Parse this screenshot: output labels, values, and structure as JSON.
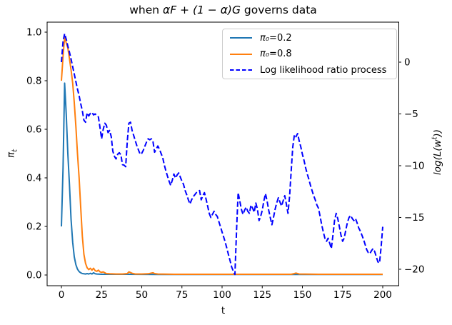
{
  "figure": {
    "title": {
      "prefix": "when ",
      "math": "αF + (1 − α)G",
      "suffix": " governs data"
    },
    "xlabel": "t",
    "ylabel_left": {
      "main": "π",
      "sub": "t"
    },
    "ylabel_right": {
      "pre": "log(L(w",
      "sup": "t",
      "post": "))"
    }
  },
  "chart_data": {
    "type": "line",
    "title": "when αF + (1 − α)G governs data",
    "xlabel": "t",
    "ylabel_left": "π_t",
    "ylabel_right": "log(L(w^t))",
    "grid": false,
    "xlim": [
      -8.9,
      210.0
    ],
    "ylim_left": [
      -0.0441,
      1.0412
    ],
    "ylim_right": [
      -21.59,
      3.862
    ],
    "x_ticks": [
      "0",
      "25",
      "50",
      "75",
      "100",
      "125",
      "150",
      "175",
      "200"
    ],
    "x_tick_values": [
      0,
      25,
      50,
      75,
      100,
      125,
      150,
      175,
      200
    ],
    "y_ticks_left": [
      "0.0",
      "0.2",
      "0.4",
      "0.6",
      "0.8",
      "1.0"
    ],
    "y_tick_left_values": [
      0,
      0.2,
      0.4,
      0.6,
      0.8,
      1.0
    ],
    "y_ticks_right": [
      "0",
      "−5",
      "−10",
      "−15",
      "−20"
    ],
    "y_tick_right_values": [
      0,
      -5,
      -10,
      -15,
      -20
    ],
    "legend": {
      "position": "upper right",
      "entries": [
        {
          "swatch": "solid",
          "color": "#1f77b4",
          "math": "π₀",
          "rest": "=0.2"
        },
        {
          "swatch": "solid",
          "color": "#ff7f0e",
          "math": "π₀",
          "rest": "=0.8"
        },
        {
          "swatch": "dashed",
          "color": "#0000ff",
          "math": "",
          "rest": "Log likelihood ratio process"
        }
      ]
    },
    "series": [
      {
        "id": "pi0-02",
        "name": "π₀=0.2",
        "axis": "left",
        "color": "#1f77b4",
        "style": "solid",
        "points": [
          [
            0,
            0.2
          ],
          [
            1,
            0.44
          ],
          [
            2,
            0.79
          ],
          [
            3,
            0.66
          ],
          [
            4,
            0.5
          ],
          [
            5,
            0.37
          ],
          [
            6,
            0.23
          ],
          [
            7,
            0.135
          ],
          [
            8,
            0.075
          ],
          [
            9,
            0.042
          ],
          [
            10,
            0.024
          ],
          [
            11,
            0.014
          ],
          [
            12,
            0.009
          ],
          [
            13,
            0.006
          ],
          [
            14,
            0.005
          ],
          [
            15,
            0.004
          ],
          [
            16,
            0.006
          ],
          [
            17,
            0.004
          ],
          [
            18,
            0.007
          ],
          [
            19,
            0.004
          ],
          [
            20,
            0.009
          ],
          [
            21,
            0.005
          ],
          [
            22,
            0.004
          ],
          [
            25,
            0.003
          ],
          [
            40,
            0.003
          ],
          [
            60,
            0.002
          ],
          [
            100,
            0.002
          ],
          [
            140,
            0.002
          ],
          [
            200,
            0.002
          ]
        ]
      },
      {
        "id": "pi0-08",
        "name": "π₀=0.8",
        "axis": "left",
        "color": "#ff7f0e",
        "style": "solid",
        "points": [
          [
            0,
            0.8
          ],
          [
            1,
            0.9
          ],
          [
            2,
            0.98
          ],
          [
            3,
            0.955
          ],
          [
            4,
            0.935
          ],
          [
            5,
            0.89
          ],
          [
            6,
            0.845
          ],
          [
            7,
            0.79
          ],
          [
            8,
            0.71
          ],
          [
            9,
            0.61
          ],
          [
            10,
            0.5
          ],
          [
            11,
            0.4
          ],
          [
            12,
            0.28
          ],
          [
            13,
            0.16
          ],
          [
            14,
            0.085
          ],
          [
            15,
            0.048
          ],
          [
            16,
            0.03
          ],
          [
            17,
            0.022
          ],
          [
            18,
            0.028
          ],
          [
            19,
            0.02
          ],
          [
            20,
            0.028
          ],
          [
            21,
            0.018
          ],
          [
            22,
            0.015
          ],
          [
            23,
            0.02
          ],
          [
            24,
            0.013
          ],
          [
            25,
            0.011
          ],
          [
            26,
            0.013
          ],
          [
            27,
            0.009
          ],
          [
            28,
            0.006
          ],
          [
            30,
            0.005
          ],
          [
            34,
            0.004
          ],
          [
            38,
            0.004
          ],
          [
            41,
            0.006
          ],
          [
            42,
            0.013
          ],
          [
            43,
            0.01
          ],
          [
            44,
            0.007
          ],
          [
            46,
            0.004
          ],
          [
            50,
            0.004
          ],
          [
            54,
            0.005
          ],
          [
            56,
            0.008
          ],
          [
            57,
            0.009
          ],
          [
            58,
            0.006
          ],
          [
            60,
            0.004
          ],
          [
            70,
            0.003
          ],
          [
            90,
            0.003
          ],
          [
            120,
            0.003
          ],
          [
            143,
            0.003
          ],
          [
            145,
            0.006
          ],
          [
            146,
            0.008
          ],
          [
            148,
            0.004
          ],
          [
            160,
            0.003
          ],
          [
            180,
            0.003
          ],
          [
            200,
            0.003
          ]
        ]
      },
      {
        "id": "llr",
        "name": "Log likelihood ratio process",
        "axis": "right",
        "color": "#0000ff",
        "style": "dashed",
        "points": [
          [
            0,
            0
          ],
          [
            1,
            2.0
          ],
          [
            2,
            2.75
          ],
          [
            3,
            2.2
          ],
          [
            4,
            1.55
          ],
          [
            5,
            0.95
          ],
          [
            6,
            0.3
          ],
          [
            7,
            -0.45
          ],
          [
            8,
            -1.15
          ],
          [
            9,
            -1.9
          ],
          [
            10,
            -2.6
          ],
          [
            11,
            -3.25
          ],
          [
            12,
            -4.0
          ],
          [
            13,
            -4.7
          ],
          [
            14,
            -5.6
          ],
          [
            15,
            -5.8
          ],
          [
            16,
            -4.9
          ],
          [
            17,
            -5.2
          ],
          [
            18,
            -4.95
          ],
          [
            19,
            -4.85
          ],
          [
            20,
            -5.1
          ],
          [
            21,
            -5.0
          ],
          [
            22,
            -5.15
          ],
          [
            23,
            -5.3
          ],
          [
            24,
            -6.3
          ],
          [
            25,
            -7.4
          ],
          [
            26,
            -6.5
          ],
          [
            27,
            -5.9
          ],
          [
            28,
            -6.1
          ],
          [
            29,
            -6.8
          ],
          [
            30,
            -6.6
          ],
          [
            31,
            -7.2
          ],
          [
            32,
            -8.6
          ],
          [
            33,
            -9.1
          ],
          [
            34,
            -9.35
          ],
          [
            35,
            -8.9
          ],
          [
            36,
            -8.75
          ],
          [
            37,
            -8.95
          ],
          [
            38,
            -9.9
          ],
          [
            39,
            -9.95
          ],
          [
            40,
            -10.1
          ],
          [
            41,
            -7.6
          ],
          [
            42,
            -5.9
          ],
          [
            43,
            -5.8
          ],
          [
            44,
            -6.6
          ],
          [
            45,
            -7.1
          ],
          [
            46,
            -7.6
          ],
          [
            47,
            -8.1
          ],
          [
            48,
            -8.5
          ],
          [
            49,
            -8.9
          ],
          [
            50,
            -8.8
          ],
          [
            51,
            -8.5
          ],
          [
            52,
            -8.1
          ],
          [
            53,
            -7.7
          ],
          [
            54,
            -7.4
          ],
          [
            55,
            -7.5
          ],
          [
            56,
            -7.4
          ],
          [
            57,
            -7.7
          ],
          [
            58,
            -8.7
          ],
          [
            59,
            -8.4
          ],
          [
            60,
            -8.1
          ],
          [
            61,
            -8.4
          ],
          [
            62,
            -8.8
          ],
          [
            63,
            -9.2
          ],
          [
            64,
            -9.9
          ],
          [
            65,
            -10.5
          ],
          [
            66,
            -11.0
          ],
          [
            67,
            -11.5
          ],
          [
            68,
            -11.9
          ],
          [
            69,
            -11.4
          ],
          [
            70,
            -10.8
          ],
          [
            71,
            -11.2
          ],
          [
            72,
            -10.9
          ],
          [
            73,
            -10.7
          ],
          [
            74,
            -11.1
          ],
          [
            75,
            -11.5
          ],
          [
            76,
            -11.8
          ],
          [
            77,
            -12.4
          ],
          [
            78,
            -12.8
          ],
          [
            79,
            -13.3
          ],
          [
            80,
            -13.7
          ],
          [
            81,
            -13.3
          ],
          [
            82,
            -13.0
          ],
          [
            83,
            -12.8
          ],
          [
            84,
            -12.6
          ],
          [
            85,
            -12.5
          ],
          [
            86,
            -12.4
          ],
          [
            87,
            -13.3
          ],
          [
            88,
            -12.9
          ],
          [
            89,
            -12.6
          ],
          [
            90,
            -13.2
          ],
          [
            91,
            -13.9
          ],
          [
            92,
            -14.6
          ],
          [
            93,
            -15.0
          ],
          [
            94,
            -14.7
          ],
          [
            95,
            -14.4
          ],
          [
            96,
            -14.7
          ],
          [
            97,
            -14.9
          ],
          [
            98,
            -15.4
          ],
          [
            99,
            -15.9
          ],
          [
            100,
            -16.4
          ],
          [
            101,
            -16.9
          ],
          [
            102,
            -17.4
          ],
          [
            103,
            -18.0
          ],
          [
            104,
            -18.6
          ],
          [
            105,
            -19.2
          ],
          [
            106,
            -19.8
          ],
          [
            107,
            -20.2
          ],
          [
            108,
            -20.5
          ],
          [
            109,
            -16.2
          ],
          [
            110,
            -12.6
          ],
          [
            111,
            -13.4
          ],
          [
            112,
            -14.2
          ],
          [
            113,
            -14.7
          ],
          [
            114,
            -14.3
          ],
          [
            115,
            -14.0
          ],
          [
            116,
            -14.4
          ],
          [
            117,
            -14.6
          ],
          [
            118,
            -13.8
          ],
          [
            119,
            -14.1
          ],
          [
            120,
            -14.5
          ],
          [
            121,
            -13.6
          ],
          [
            122,
            -14.2
          ],
          [
            123,
            -15.3
          ],
          [
            124,
            -14.9
          ],
          [
            125,
            -14.3
          ],
          [
            126,
            -13.4
          ],
          [
            127,
            -12.7
          ],
          [
            128,
            -13.4
          ],
          [
            129,
            -14.3
          ],
          [
            130,
            -15.0
          ],
          [
            131,
            -15.7
          ],
          [
            132,
            -15.0
          ],
          [
            133,
            -14.2
          ],
          [
            134,
            -13.6
          ],
          [
            135,
            -13.1
          ],
          [
            136,
            -13.5
          ],
          [
            137,
            -13.9
          ],
          [
            138,
            -13.4
          ],
          [
            139,
            -12.9
          ],
          [
            140,
            -13.7
          ],
          [
            141,
            -14.6
          ],
          [
            142,
            -13.0
          ],
          [
            143,
            -10.5
          ],
          [
            144,
            -8.2
          ],
          [
            145,
            -7.0
          ],
          [
            146,
            -7.2
          ],
          [
            147,
            -6.9
          ],
          [
            148,
            -7.6
          ],
          [
            149,
            -8.2
          ],
          [
            150,
            -8.9
          ],
          [
            151,
            -9.5
          ],
          [
            152,
            -10.2
          ],
          [
            153,
            -10.8
          ],
          [
            154,
            -11.3
          ],
          [
            155,
            -11.9
          ],
          [
            156,
            -12.4
          ],
          [
            157,
            -12.9
          ],
          [
            158,
            -13.3
          ],
          [
            159,
            -13.8
          ],
          [
            160,
            -14.1
          ],
          [
            161,
            -14.9
          ],
          [
            162,
            -15.7
          ],
          [
            163,
            -16.4
          ],
          [
            164,
            -17.0
          ],
          [
            165,
            -17.3
          ],
          [
            166,
            -17.0
          ],
          [
            167,
            -17.5
          ],
          [
            168,
            -18.0
          ],
          [
            169,
            -16.7
          ],
          [
            170,
            -15.3
          ],
          [
            171,
            -14.6
          ],
          [
            172,
            -15.1
          ],
          [
            173,
            -15.9
          ],
          [
            174,
            -16.7
          ],
          [
            175,
            -17.3
          ],
          [
            176,
            -17.0
          ],
          [
            177,
            -16.2
          ],
          [
            178,
            -15.5
          ],
          [
            179,
            -15.0
          ],
          [
            180,
            -14.8
          ],
          [
            181,
            -15.1
          ],
          [
            182,
            -15.3
          ],
          [
            183,
            -15.1
          ],
          [
            184,
            -15.5
          ],
          [
            185,
            -16.0
          ],
          [
            186,
            -16.3
          ],
          [
            187,
            -16.7
          ],
          [
            188,
            -17.1
          ],
          [
            189,
            -17.6
          ],
          [
            190,
            -18.1
          ],
          [
            191,
            -18.4
          ],
          [
            192,
            -18.5
          ],
          [
            193,
            -18.2
          ],
          [
            194,
            -18.0
          ],
          [
            195,
            -18.3
          ],
          [
            196,
            -18.8
          ],
          [
            197,
            -19.3
          ],
          [
            198,
            -19.4
          ],
          [
            199,
            -17.8
          ],
          [
            200,
            -15.9
          ]
        ]
      }
    ]
  },
  "colors": {
    "series_blue": "#1f77b4",
    "series_orange": "#ff7f0e",
    "series_dashed_blue": "#0000ff",
    "spine": "#000000",
    "legend_border": "#cccccc",
    "background": "#ffffff"
  }
}
